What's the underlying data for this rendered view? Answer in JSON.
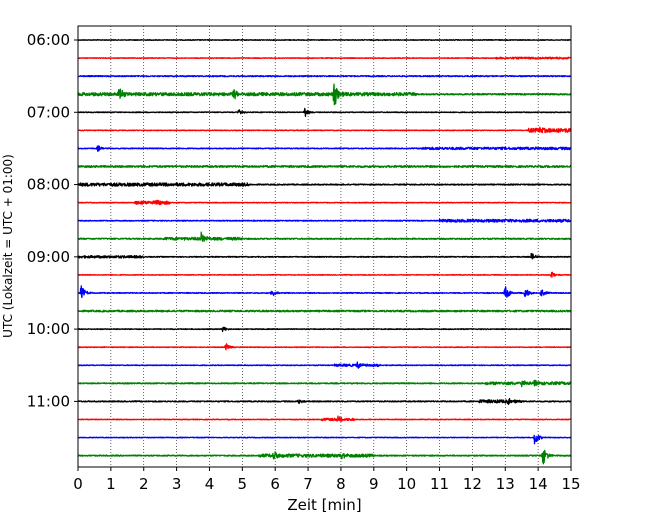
{
  "chart_data": {
    "type": "line",
    "title": "",
    "xlabel": "Zeit  [min]",
    "ylabel": "UTC (Lokalzeit = UTC + 01:00)",
    "xlim": [
      0,
      15
    ],
    "x_ticks": [
      "0",
      "1",
      "2",
      "3",
      "4",
      "5",
      "6",
      "7",
      "8",
      "9",
      "10",
      "11",
      "12",
      "13",
      "14",
      "15"
    ],
    "y_ticks": [
      "06:00",
      "07:00",
      "08:00",
      "09:00",
      "10:00",
      "11:00"
    ],
    "grid": "vertical dotted",
    "trace_colors": [
      "#000000",
      "#ff0000",
      "#0000ff",
      "#008000"
    ],
    "trace_interval_min": 15,
    "traces": [
      {
        "start": "06:00",
        "color": "#000000",
        "events": [],
        "noise": 0.35,
        "segments": []
      },
      {
        "start": "06:15",
        "color": "#ff0000",
        "events": [],
        "noise": 0.35,
        "segments": [
          {
            "from": 12.7,
            "to": 15.0,
            "amp": 0.9
          }
        ]
      },
      {
        "start": "06:30",
        "color": "#0000ff",
        "events": [],
        "noise": 0.55,
        "segments": []
      },
      {
        "start": "06:45",
        "color": "#008000",
        "events": [
          {
            "t": 1.25,
            "amp": 6
          },
          {
            "t": 4.75,
            "amp": 5
          },
          {
            "t": 7.8,
            "amp": 14
          }
        ],
        "noise": 0.7,
        "segments": [
          {
            "from": 0.0,
            "to": 10.3,
            "amp": 1.6
          }
        ]
      },
      {
        "start": "07:00",
        "color": "#000000",
        "events": [
          {
            "t": 4.9,
            "amp": 3
          },
          {
            "t": 6.9,
            "amp": 5
          }
        ],
        "noise": 0.4,
        "segments": []
      },
      {
        "start": "07:15",
        "color": "#ff0000",
        "events": [
          {
            "t": 14.0,
            "amp": 3
          }
        ],
        "noise": 0.35,
        "segments": [
          {
            "from": 13.7,
            "to": 15.0,
            "amp": 2
          }
        ]
      },
      {
        "start": "07:30",
        "color": "#0000ff",
        "events": [
          {
            "t": 0.6,
            "amp": 3
          }
        ],
        "noise": 0.45,
        "segments": [
          {
            "from": 10.4,
            "to": 15.0,
            "amp": 1.2
          }
        ]
      },
      {
        "start": "07:45",
        "color": "#008000",
        "events": [],
        "noise": 0.6,
        "segments": [
          {
            "from": 0.0,
            "to": 15.0,
            "amp": 0.9
          }
        ]
      },
      {
        "start": "08:00",
        "color": "#000000",
        "events": [],
        "noise": 0.55,
        "segments": [
          {
            "from": 0.0,
            "to": 5.2,
            "amp": 1.6
          }
        ]
      },
      {
        "start": "08:15",
        "color": "#ff0000",
        "events": [
          {
            "t": 2.4,
            "amp": 2
          }
        ],
        "noise": 0.35,
        "segments": [
          {
            "from": 1.7,
            "to": 2.8,
            "amp": 1.6
          }
        ]
      },
      {
        "start": "08:30",
        "color": "#0000ff",
        "events": [],
        "noise": 0.45,
        "segments": [
          {
            "from": 11.0,
            "to": 15.0,
            "amp": 1.4
          }
        ]
      },
      {
        "start": "08:45",
        "color": "#008000",
        "events": [
          {
            "t": 3.75,
            "amp": 6
          }
        ],
        "noise": 0.6,
        "segments": [
          {
            "from": 2.6,
            "to": 5.0,
            "amp": 1.4
          }
        ]
      },
      {
        "start": "09:00",
        "color": "#000000",
        "events": [
          {
            "t": 13.8,
            "amp": 4
          }
        ],
        "noise": 0.45,
        "segments": [
          {
            "from": 0.0,
            "to": 2.0,
            "amp": 1.2
          }
        ]
      },
      {
        "start": "09:15",
        "color": "#ff0000",
        "events": [
          {
            "t": 14.4,
            "amp": 4
          }
        ],
        "noise": 0.35,
        "segments": []
      },
      {
        "start": "09:30",
        "color": "#0000ff",
        "events": [
          {
            "t": 0.1,
            "amp": 8
          },
          {
            "t": 5.9,
            "amp": 4
          },
          {
            "t": 13.0,
            "amp": 8
          },
          {
            "t": 13.6,
            "amp": 7
          },
          {
            "t": 14.1,
            "amp": 5
          }
        ],
        "noise": 0.45,
        "segments": []
      },
      {
        "start": "09:45",
        "color": "#008000",
        "events": [],
        "noise": 0.5,
        "segments": [
          {
            "from": 0.0,
            "to": 15.0,
            "amp": 0.8
          }
        ]
      },
      {
        "start": "10:00",
        "color": "#000000",
        "events": [
          {
            "t": 4.4,
            "amp": 2.5
          }
        ],
        "noise": 0.4,
        "segments": []
      },
      {
        "start": "10:15",
        "color": "#ff0000",
        "events": [
          {
            "t": 4.5,
            "amp": 4
          }
        ],
        "noise": 0.35,
        "segments": []
      },
      {
        "start": "10:30",
        "color": "#0000ff",
        "events": [
          {
            "t": 8.5,
            "amp": 4
          }
        ],
        "noise": 0.4,
        "segments": [
          {
            "from": 7.8,
            "to": 9.2,
            "amp": 1.2
          }
        ]
      },
      {
        "start": "10:45",
        "color": "#008000",
        "events": [
          {
            "t": 13.5,
            "amp": 3
          },
          {
            "t": 13.9,
            "amp": 3
          }
        ],
        "noise": 0.55,
        "segments": [
          {
            "from": 12.4,
            "to": 15.0,
            "amp": 1.4
          }
        ]
      },
      {
        "start": "11:00",
        "color": "#000000",
        "events": [
          {
            "t": 6.7,
            "amp": 2.5
          },
          {
            "t": 13.1,
            "amp": 3
          }
        ],
        "noise": 0.55,
        "segments": [
          {
            "from": 12.2,
            "to": 13.5,
            "amp": 1.6
          }
        ]
      },
      {
        "start": "11:15",
        "color": "#ff0000",
        "events": [
          {
            "t": 7.9,
            "amp": 2.5
          }
        ],
        "noise": 0.35,
        "segments": [
          {
            "from": 7.4,
            "to": 8.4,
            "amp": 1.2
          }
        ]
      },
      {
        "start": "11:30",
        "color": "#0000ff",
        "events": [
          {
            "t": 13.9,
            "amp": 8
          }
        ],
        "noise": 0.35,
        "segments": []
      },
      {
        "start": "11:45",
        "color": "#008000",
        "events": [
          {
            "t": 5.95,
            "amp": 5
          },
          {
            "t": 8.0,
            "amp": 4
          },
          {
            "t": 14.15,
            "amp": 10
          }
        ],
        "noise": 0.55,
        "segments": [
          {
            "from": 5.5,
            "to": 9.0,
            "amp": 1.6
          }
        ]
      }
    ]
  }
}
